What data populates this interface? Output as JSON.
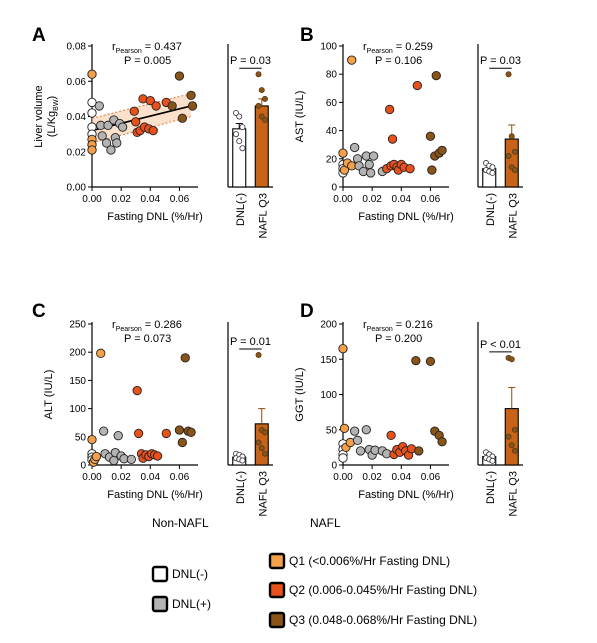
{
  "colors": {
    "dnl_neg": "#ffffff",
    "dnl_pos": "#b3b3b3",
    "q1": "#f4a048",
    "q2": "#e8501c",
    "q3": "#8a5418",
    "bar": "#c8641a",
    "ci_fill": "#f7c9a0",
    "ci_line": "#e07a3a"
  },
  "legend": {
    "non_nafl_title": "Non-NAFL",
    "nafl_title": "NAFL",
    "items": [
      {
        "key": "dnl_neg",
        "label": "DNL(-)"
      },
      {
        "key": "dnl_pos",
        "label": "DNL(+)"
      },
      {
        "key": "q1",
        "label": "Q1 (<0.006%/Hr Fasting DNL)"
      },
      {
        "key": "q2",
        "label": "Q2 (0.006-0.045%/Hr Fasting DNL)"
      },
      {
        "key": "q3",
        "label": "Q3 (0.048-0.068%/Hr Fasting DNL)"
      }
    ]
  },
  "chart_data": [
    {
      "panel": "A",
      "type": "scatter",
      "xlabel": "Fasting DNL (%/Hr)",
      "ylabel": "Liver volume",
      "ylabel2_prefix": "(L/Kg",
      "ylabel2_sub": "BW",
      "ylabel2_suffix": ")",
      "xlim": [
        0,
        0.07
      ],
      "xticks": [
        "0.00",
        "0.02",
        "0.04",
        "0.06"
      ],
      "xtick_values": [
        0,
        0.02,
        0.04,
        0.06
      ],
      "ylim": [
        0,
        0.08
      ],
      "yticks": [
        "0.00",
        "0.02",
        "0.04",
        "0.06",
        "0.08"
      ],
      "ytick_values": [
        0,
        0.02,
        0.04,
        0.06,
        0.08
      ],
      "stat_r_prefix": "r",
      "stat_r_sub": "Pearson",
      "stat_r_value": " = 0.437",
      "stat_p": "P = 0.005",
      "fit": {
        "x": [
          0,
          0.068
        ],
        "y": [
          0.032,
          0.046
        ],
        "band_low": [
          0.025,
          0.04
        ],
        "band_high": [
          0.039,
          0.053
        ]
      },
      "points": [
        {
          "x": 0.0,
          "y": 0.064,
          "g": "q1"
        },
        {
          "x": 0.0,
          "y": 0.048,
          "g": "dnl_neg"
        },
        {
          "x": 0.0,
          "y": 0.042,
          "g": "dnl_neg"
        },
        {
          "x": 0.0,
          "y": 0.034,
          "g": "dnl_neg"
        },
        {
          "x": 0.0,
          "y": 0.03,
          "g": "dnl_neg"
        },
        {
          "x": 0.0,
          "y": 0.027,
          "g": "q1"
        },
        {
          "x": 0.0,
          "y": 0.024,
          "g": "q1"
        },
        {
          "x": 0.0,
          "y": 0.021,
          "g": "q1"
        },
        {
          "x": 0.005,
          "y": 0.046,
          "g": "dnl_pos"
        },
        {
          "x": 0.006,
          "y": 0.035,
          "g": "dnl_pos"
        },
        {
          "x": 0.007,
          "y": 0.029,
          "g": "dnl_pos"
        },
        {
          "x": 0.01,
          "y": 0.025,
          "g": "dnl_pos"
        },
        {
          "x": 0.011,
          "y": 0.035,
          "g": "dnl_pos"
        },
        {
          "x": 0.013,
          "y": 0.021,
          "g": "dnl_pos"
        },
        {
          "x": 0.015,
          "y": 0.038,
          "g": "dnl_pos"
        },
        {
          "x": 0.016,
          "y": 0.028,
          "g": "dnl_pos"
        },
        {
          "x": 0.017,
          "y": 0.025,
          "g": "dnl_pos"
        },
        {
          "x": 0.019,
          "y": 0.036,
          "g": "dnl_pos"
        },
        {
          "x": 0.021,
          "y": 0.034,
          "g": "dnl_pos"
        },
        {
          "x": 0.029,
          "y": 0.043,
          "g": "q2"
        },
        {
          "x": 0.03,
          "y": 0.037,
          "g": "q2"
        },
        {
          "x": 0.031,
          "y": 0.031,
          "g": "q2"
        },
        {
          "x": 0.033,
          "y": 0.032,
          "g": "q2"
        },
        {
          "x": 0.035,
          "y": 0.05,
          "g": "q2"
        },
        {
          "x": 0.036,
          "y": 0.034,
          "g": "q2"
        },
        {
          "x": 0.039,
          "y": 0.033,
          "g": "q2"
        },
        {
          "x": 0.04,
          "y": 0.049,
          "g": "q2"
        },
        {
          "x": 0.042,
          "y": 0.032,
          "g": "q2"
        },
        {
          "x": 0.044,
          "y": 0.046,
          "g": "q2"
        },
        {
          "x": 0.051,
          "y": 0.048,
          "g": "q2"
        },
        {
          "x": 0.055,
          "y": 0.046,
          "g": "q3"
        },
        {
          "x": 0.06,
          "y": 0.063,
          "g": "q3"
        },
        {
          "x": 0.062,
          "y": 0.039,
          "g": "q3"
        },
        {
          "x": 0.068,
          "y": 0.052,
          "g": "q3"
        },
        {
          "x": 0.069,
          "y": 0.046,
          "g": "q3"
        }
      ],
      "bar": {
        "categories": [
          "DNL(-)",
          "NAFL Q3"
        ],
        "values": [
          0.033,
          0.046
        ],
        "errors": [
          0.003,
          0.004
        ],
        "p_label": "P = 0.03",
        "points": [
          [
            0.042,
            0.04,
            0.034,
            0.03,
            0.026,
            0.022
          ],
          [
            0.064,
            0.055,
            0.05,
            0.046,
            0.04,
            0.038
          ]
        ]
      }
    },
    {
      "panel": "B",
      "type": "scatter",
      "xlabel": "Fasting DNL (%/Hr)",
      "ylabel": "AST (IU/L)",
      "xlim": [
        0,
        0.07
      ],
      "xticks": [
        "0.00",
        "0.02",
        "0.04",
        "0.06"
      ],
      "xtick_values": [
        0,
        0.02,
        0.04,
        0.06
      ],
      "ylim": [
        0,
        100
      ],
      "yticks": [
        "0",
        "20",
        "40",
        "60",
        "80",
        "100"
      ],
      "ytick_values": [
        0,
        20,
        40,
        60,
        80,
        100
      ],
      "stat_r_prefix": "r",
      "stat_r_sub": "Pearson",
      "stat_r_value": " = 0.259",
      "stat_p": "P = 0.106",
      "points": [
        {
          "x": 0.0,
          "y": 24,
          "g": "q1"
        },
        {
          "x": 0.0,
          "y": 16,
          "g": "dnl_neg"
        },
        {
          "x": 0.0,
          "y": 13,
          "g": "dnl_neg"
        },
        {
          "x": 0.0,
          "y": 10,
          "g": "dnl_neg"
        },
        {
          "x": 0.001,
          "y": 12,
          "g": "q1"
        },
        {
          "x": 0.003,
          "y": 17,
          "g": "q1"
        },
        {
          "x": 0.006,
          "y": 90,
          "g": "q1"
        },
        {
          "x": 0.006,
          "y": 15,
          "g": "q1"
        },
        {
          "x": 0.008,
          "y": 28,
          "g": "dnl_pos"
        },
        {
          "x": 0.01,
          "y": 20,
          "g": "dnl_pos"
        },
        {
          "x": 0.011,
          "y": 15,
          "g": "dnl_pos"
        },
        {
          "x": 0.014,
          "y": 11,
          "g": "dnl_pos"
        },
        {
          "x": 0.016,
          "y": 22,
          "g": "dnl_pos"
        },
        {
          "x": 0.018,
          "y": 16,
          "g": "dnl_pos"
        },
        {
          "x": 0.019,
          "y": 10,
          "g": "dnl_pos"
        },
        {
          "x": 0.021,
          "y": 22,
          "g": "dnl_pos"
        },
        {
          "x": 0.027,
          "y": 11,
          "g": "dnl_pos"
        },
        {
          "x": 0.03,
          "y": 13,
          "g": "q2"
        },
        {
          "x": 0.032,
          "y": 55,
          "g": "q2"
        },
        {
          "x": 0.033,
          "y": 15,
          "g": "q2"
        },
        {
          "x": 0.034,
          "y": 34,
          "g": "q2"
        },
        {
          "x": 0.035,
          "y": 16,
          "g": "q2"
        },
        {
          "x": 0.037,
          "y": 14,
          "g": "q2"
        },
        {
          "x": 0.038,
          "y": 12,
          "g": "q2"
        },
        {
          "x": 0.04,
          "y": 16,
          "g": "q2"
        },
        {
          "x": 0.042,
          "y": 14,
          "g": "q2"
        },
        {
          "x": 0.046,
          "y": 13,
          "g": "q2"
        },
        {
          "x": 0.051,
          "y": 72,
          "g": "q2"
        },
        {
          "x": 0.06,
          "y": 36,
          "g": "q3"
        },
        {
          "x": 0.063,
          "y": 22,
          "g": "q3"
        },
        {
          "x": 0.064,
          "y": 79,
          "g": "q3"
        },
        {
          "x": 0.066,
          "y": 24,
          "g": "q3"
        },
        {
          "x": 0.068,
          "y": 26,
          "g": "q3"
        },
        {
          "x": 0.061,
          "y": 12,
          "g": "q3"
        }
      ],
      "bar": {
        "categories": [
          "DNL(-)",
          "NAFL Q3"
        ],
        "values": [
          13,
          34
        ],
        "errors": [
          2,
          10
        ],
        "p_label": "P = 0.03",
        "points": [
          [
            17,
            15,
            14,
            12,
            11,
            10
          ],
          [
            80,
            36,
            25,
            22,
            14,
            12
          ]
        ]
      }
    },
    {
      "panel": "C",
      "type": "scatter",
      "xlabel": "Fasting DNL (%/Hr)",
      "ylabel": "ALT (IU/L)",
      "xlim": [
        0,
        0.07
      ],
      "xticks": [
        "0.00",
        "0.02",
        "0.04",
        "0.06"
      ],
      "xtick_values": [
        0,
        0.02,
        0.04,
        0.06
      ],
      "ylim": [
        0,
        250
      ],
      "yticks": [
        "0",
        "50",
        "100",
        "150",
        "200",
        "250"
      ],
      "ytick_values": [
        0,
        50,
        100,
        150,
        200,
        250
      ],
      "stat_r_prefix": "r",
      "stat_r_sub": "Pearson",
      "stat_r_value": " = 0.286",
      "stat_p": "P = 0.073",
      "points": [
        {
          "x": 0.0,
          "y": 45,
          "g": "q1"
        },
        {
          "x": 0.0,
          "y": 20,
          "g": "dnl_neg"
        },
        {
          "x": 0.0,
          "y": 14,
          "g": "dnl_neg"
        },
        {
          "x": 0.0,
          "y": 9,
          "g": "dnl_neg"
        },
        {
          "x": 0.001,
          "y": 5,
          "g": "q1"
        },
        {
          "x": 0.002,
          "y": 10,
          "g": "q1"
        },
        {
          "x": 0.003,
          "y": 15,
          "g": "q1"
        },
        {
          "x": 0.006,
          "y": 198,
          "g": "q1"
        },
        {
          "x": 0.008,
          "y": 60,
          "g": "dnl_pos"
        },
        {
          "x": 0.009,
          "y": 20,
          "g": "dnl_pos"
        },
        {
          "x": 0.012,
          "y": 14,
          "g": "dnl_pos"
        },
        {
          "x": 0.015,
          "y": 8,
          "g": "dnl_pos"
        },
        {
          "x": 0.016,
          "y": 22,
          "g": "dnl_pos"
        },
        {
          "x": 0.018,
          "y": 52,
          "g": "dnl_pos"
        },
        {
          "x": 0.02,
          "y": 16,
          "g": "dnl_pos"
        },
        {
          "x": 0.022,
          "y": 11,
          "g": "dnl_pos"
        },
        {
          "x": 0.027,
          "y": 10,
          "g": "dnl_pos"
        },
        {
          "x": 0.031,
          "y": 132,
          "g": "q2"
        },
        {
          "x": 0.032,
          "y": 56,
          "g": "q2"
        },
        {
          "x": 0.034,
          "y": 20,
          "g": "q2"
        },
        {
          "x": 0.035,
          "y": 12,
          "g": "q2"
        },
        {
          "x": 0.037,
          "y": 18,
          "g": "q2"
        },
        {
          "x": 0.039,
          "y": 15,
          "g": "q2"
        },
        {
          "x": 0.041,
          "y": 20,
          "g": "q2"
        },
        {
          "x": 0.043,
          "y": 18,
          "g": "q2"
        },
        {
          "x": 0.045,
          "y": 16,
          "g": "q2"
        },
        {
          "x": 0.051,
          "y": 56,
          "g": "q2"
        },
        {
          "x": 0.06,
          "y": 62,
          "g": "q3"
        },
        {
          "x": 0.062,
          "y": 40,
          "g": "q3"
        },
        {
          "x": 0.064,
          "y": 190,
          "g": "q3"
        },
        {
          "x": 0.066,
          "y": 60,
          "g": "q3"
        },
        {
          "x": 0.068,
          "y": 58,
          "g": "q3"
        }
      ],
      "bar": {
        "categories": [
          "DNL(-)",
          "NAFL Q3"
        ],
        "values": [
          14,
          73
        ],
        "errors": [
          3,
          27
        ],
        "p_label": "P = 0.01",
        "points": [
          [
            20,
            18,
            15,
            12,
            10,
            8
          ],
          [
            195,
            62,
            58,
            40,
            30,
            20
          ]
        ]
      }
    },
    {
      "panel": "D",
      "type": "scatter",
      "xlabel": "Fasting DNL (%/Hr)",
      "ylabel": "GGT (IU/L)",
      "xlim": [
        0,
        0.07
      ],
      "xticks": [
        "0.00",
        "0.02",
        "0.04",
        "0.06"
      ],
      "xtick_values": [
        0,
        0.02,
        0.04,
        0.06
      ],
      "ylim": [
        0,
        200
      ],
      "yticks": [
        "0",
        "50",
        "100",
        "150",
        "200"
      ],
      "ytick_values": [
        0,
        50,
        100,
        150,
        200
      ],
      "stat_r_prefix": "r",
      "stat_r_sub": "Pearson",
      "stat_r_value": " = 0.216",
      "stat_p": "P = 0.200",
      "points": [
        {
          "x": 0.0,
          "y": 165,
          "g": "q1"
        },
        {
          "x": 0.0,
          "y": 30,
          "g": "dnl_neg"
        },
        {
          "x": 0.0,
          "y": 22,
          "g": "dnl_neg"
        },
        {
          "x": 0.0,
          "y": 15,
          "g": "dnl_neg"
        },
        {
          "x": 0.0,
          "y": 10,
          "g": "dnl_neg"
        },
        {
          "x": 0.001,
          "y": 52,
          "g": "q1"
        },
        {
          "x": 0.002,
          "y": 25,
          "g": "q1"
        },
        {
          "x": 0.005,
          "y": 32,
          "g": "q1"
        },
        {
          "x": 0.008,
          "y": 48,
          "g": "dnl_pos"
        },
        {
          "x": 0.01,
          "y": 35,
          "g": "dnl_pos"
        },
        {
          "x": 0.012,
          "y": 20,
          "g": "dnl_pos"
        },
        {
          "x": 0.016,
          "y": 50,
          "g": "dnl_pos"
        },
        {
          "x": 0.018,
          "y": 22,
          "g": "dnl_pos"
        },
        {
          "x": 0.02,
          "y": 14,
          "g": "dnl_pos"
        },
        {
          "x": 0.022,
          "y": 21,
          "g": "dnl_pos"
        },
        {
          "x": 0.027,
          "y": 20,
          "g": "dnl_pos"
        },
        {
          "x": 0.03,
          "y": 16,
          "g": "dnl_pos"
        },
        {
          "x": 0.033,
          "y": 42,
          "g": "q2"
        },
        {
          "x": 0.035,
          "y": 15,
          "g": "q2"
        },
        {
          "x": 0.037,
          "y": 22,
          "g": "q2"
        },
        {
          "x": 0.039,
          "y": 18,
          "g": "q2"
        },
        {
          "x": 0.041,
          "y": 26,
          "g": "q2"
        },
        {
          "x": 0.043,
          "y": 20,
          "g": "q2"
        },
        {
          "x": 0.045,
          "y": 14,
          "g": "q2"
        },
        {
          "x": 0.047,
          "y": 23,
          "g": "q2"
        },
        {
          "x": 0.05,
          "y": 148,
          "g": "q3"
        },
        {
          "x": 0.052,
          "y": 20,
          "g": "q3"
        },
        {
          "x": 0.06,
          "y": 147,
          "g": "q3"
        },
        {
          "x": 0.063,
          "y": 48,
          "g": "q3"
        },
        {
          "x": 0.066,
          "y": 42,
          "g": "q3"
        },
        {
          "x": 0.068,
          "y": 33,
          "g": "q3"
        }
      ],
      "bar": {
        "categories": [
          "DNL(-)",
          "NAFL Q3"
        ],
        "values": [
          12,
          80
        ],
        "errors": [
          3,
          30
        ],
        "p_label": "P < 0.01",
        "points": [
          [
            18,
            15,
            12,
            10,
            8,
            6
          ],
          [
            152,
            150,
            50,
            40,
            28,
            20
          ]
        ]
      }
    }
  ]
}
